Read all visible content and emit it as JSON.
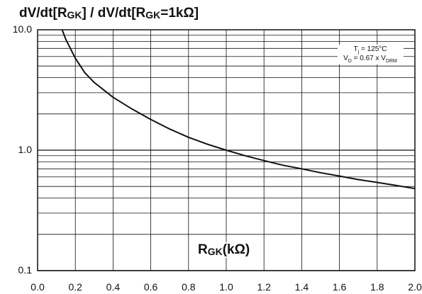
{
  "chart_data": {
    "type": "line",
    "title": "dV/dt[RGK] / dV/dt[RGK=1kΩ]",
    "title_parts": {
      "a": "dV/dt[R",
      "a_sub": "GK",
      "b": "] / dV/dt[R",
      "b_sub": "GK",
      "c": "=1kΩ]"
    },
    "xlabel": "RGK(kΩ)",
    "xlabel_parts": {
      "main": "R",
      "sub": "GK",
      "unit": "(kΩ)"
    },
    "ylabel": "",
    "xlim": [
      0.0,
      2.0
    ],
    "ylim": [
      0.1,
      10.0
    ],
    "y_scale": "log",
    "grid": true,
    "x_ticks": [
      "0.0",
      "0.2",
      "0.4",
      "0.6",
      "0.8",
      "1.0",
      "1.2",
      "1.4",
      "1.6",
      "1.8",
      "2.0"
    ],
    "y_ticks": [
      {
        "value": 10.0,
        "label": "10.0"
      },
      {
        "value": 1.0,
        "label": "1.0"
      },
      {
        "value": 0.1,
        "label": "0.1"
      }
    ],
    "annotations": {
      "line1": {
        "a": "T",
        "sub": "j",
        "b": " = 125°C"
      },
      "line2": {
        "a": "V",
        "sub1": "D",
        "b": " = 0.67 x V",
        "sub2": "DRM"
      }
    },
    "series": [
      {
        "x": [
          0.13,
          0.15,
          0.2,
          0.25,
          0.3,
          0.4,
          0.5,
          0.6,
          0.7,
          0.8,
          0.9,
          1.0,
          1.1,
          1.2,
          1.3,
          1.4,
          1.5,
          1.6,
          1.7,
          1.8,
          1.9,
          2.0
        ],
        "y": [
          10.0,
          8.3,
          5.8,
          4.4,
          3.65,
          2.75,
          2.2,
          1.8,
          1.5,
          1.28,
          1.12,
          1.0,
          0.9,
          0.82,
          0.75,
          0.7,
          0.65,
          0.61,
          0.57,
          0.54,
          0.51,
          0.48
        ]
      }
    ]
  },
  "colors": {
    "line": "#111111",
    "grid": "#111111",
    "background": "#ffffff"
  }
}
